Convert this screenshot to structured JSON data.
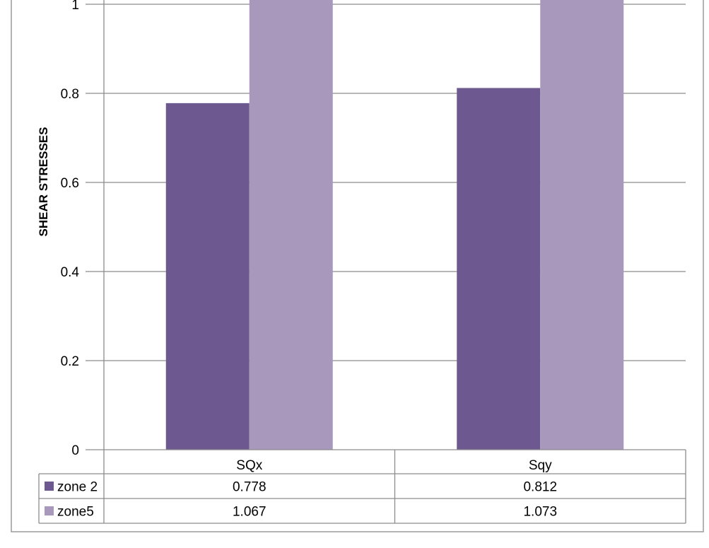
{
  "chart_data": {
    "type": "bar",
    "title": "",
    "xlabel": "",
    "ylabel": "SHEAR STRESSES",
    "categories": [
      "SQx",
      "Sqy"
    ],
    "series": [
      {
        "name": "zone 2",
        "values": [
          0.778,
          0.812
        ],
        "value_labels": [
          "0.778",
          "0.812"
        ],
        "color": "#6e5890"
      },
      {
        "name": "zone5",
        "values": [
          1.067,
          1.073
        ],
        "value_labels": [
          "1.067",
          "1.073"
        ],
        "color": "#a899bc"
      }
    ],
    "ylim": [
      0,
      1
    ],
    "yticks": [
      "0",
      "0.2",
      "0.4",
      "0.6",
      "0.8",
      "1"
    ],
    "grid": true,
    "data_table": true,
    "colors": {
      "gridline": "#8c8c8c",
      "border": "#8c8c8c",
      "text": "#000000"
    }
  }
}
